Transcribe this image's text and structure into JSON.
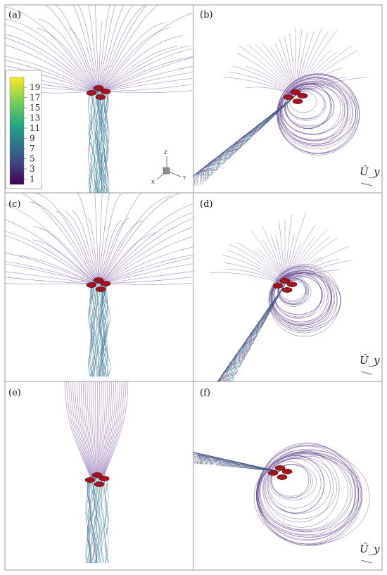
{
  "panels": [
    {
      "label": "(a)"
    },
    {
      "label": "(b)",
      "annotation": "Û_y"
    },
    {
      "label": "(c)"
    },
    {
      "label": "(d)",
      "annotation": "Û_y"
    },
    {
      "label": "(e)"
    },
    {
      "label": "(f)",
      "annotation": "Û_y"
    }
  ],
  "colorbar": {
    "ticks": [
      "19",
      "17",
      "15",
      "13",
      "11",
      "9",
      "7",
      "5",
      "3",
      "1"
    ],
    "colors": [
      "#fde725",
      "#b5de2b",
      "#6ece58",
      "#35b779",
      "#1f9e89",
      "#26828e",
      "#31688e",
      "#3e4989",
      "#482878",
      "#440154"
    ]
  },
  "axes_triad": {
    "z": "Z",
    "x": "X",
    "y": "Y"
  },
  "colors": {
    "streamline": "#7a52a8",
    "wake": "#5a78a8",
    "wake_core": "#2fa5a0",
    "rotor": "#a3141c",
    "border": "#9a9a9a"
  }
}
